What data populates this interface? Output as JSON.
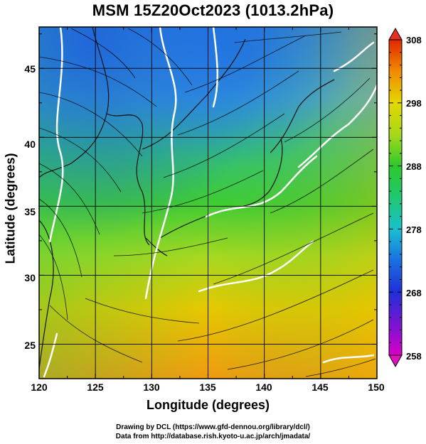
{
  "title": "MSM 15Z20Oct2023 (1013.2hPa)",
  "map": {
    "xlabel": "Longitude (degrees)",
    "ylabel": "Latitude  (degrees)",
    "lon_range": [
      120,
      150
    ],
    "lat_range": [
      22.5,
      48
    ],
    "x_ticks": [
      "120",
      "125",
      "130",
      "135",
      "140",
      "145",
      "150"
    ],
    "y_ticks": [
      "25",
      "30",
      "35",
      "40",
      "45"
    ],
    "grid": true,
    "fill": "temperature color shading with wind streamlines and white contour lines"
  },
  "colorbar": {
    "labels": [
      "308",
      "298",
      "288",
      "278",
      "268",
      "258"
    ],
    "min": 258,
    "max": 308,
    "colors": {
      "c258": "#d800c8",
      "c268": "#1f2fd8",
      "c278": "#19c0cf",
      "c288": "#2cc92c",
      "c298": "#e4d800",
      "c308": "#e02800"
    }
  },
  "credits": {
    "line1": "Drawing by DCL (https://www.gfd-dennou.org/library/dcl/)",
    "line2": "Data from http://database.rish.kyoto-u.ac.jp/arch/jmadata/"
  }
}
